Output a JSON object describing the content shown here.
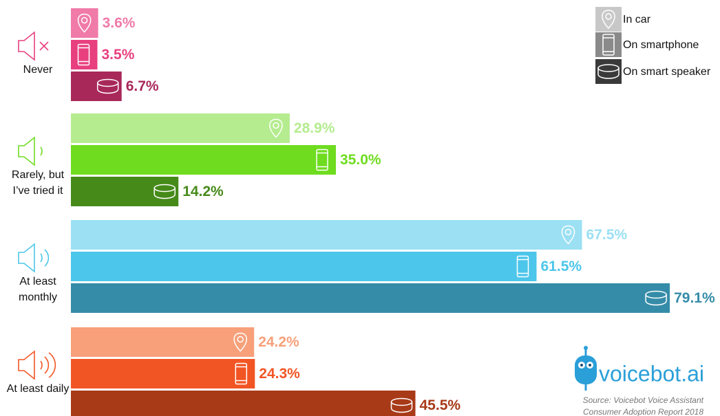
{
  "chart_data": {
    "type": "bar",
    "orientation": "horizontal",
    "categories": [
      "Never",
      "Rarely, but I’ve tried it",
      "At least monthly",
      "At least daily"
    ],
    "series": [
      {
        "name": "In car",
        "color": "#c8c8c8",
        "colors": [
          "#f07aa8",
          "#b5ec8f",
          "#9be0f3",
          "#f7a07a"
        ],
        "values": [
          3.6,
          28.9,
          67.5,
          24.2
        ],
        "value_labels": [
          "3.6%",
          "28.9%",
          "67.5%",
          "24.2%"
        ]
      },
      {
        "name": "On smartphone",
        "color": "#8a8a8a",
        "colors": [
          "#e8407f",
          "#6fdc20",
          "#4cc6ea",
          "#f25524"
        ],
        "values": [
          3.5,
          35.0,
          61.5,
          24.3
        ],
        "value_labels": [
          "3.5%",
          "35.0%",
          "61.5%",
          "24.3%"
        ]
      },
      {
        "name": "On smart speaker",
        "color": "#3a3a3a",
        "colors": [
          "#a8285a",
          "#468a1a",
          "#358ca8",
          "#a83a18"
        ],
        "values": [
          6.7,
          14.2,
          79.1,
          45.5
        ],
        "value_labels": [
          "6.7%",
          "14.2%",
          "79.1%",
          "45.5%"
        ]
      }
    ],
    "legend": "top-right",
    "logo": "voicebot.ai",
    "source": [
      "Source: Voicebot Voice Assistant",
      "Consumer Adoption Report 2018"
    ]
  }
}
